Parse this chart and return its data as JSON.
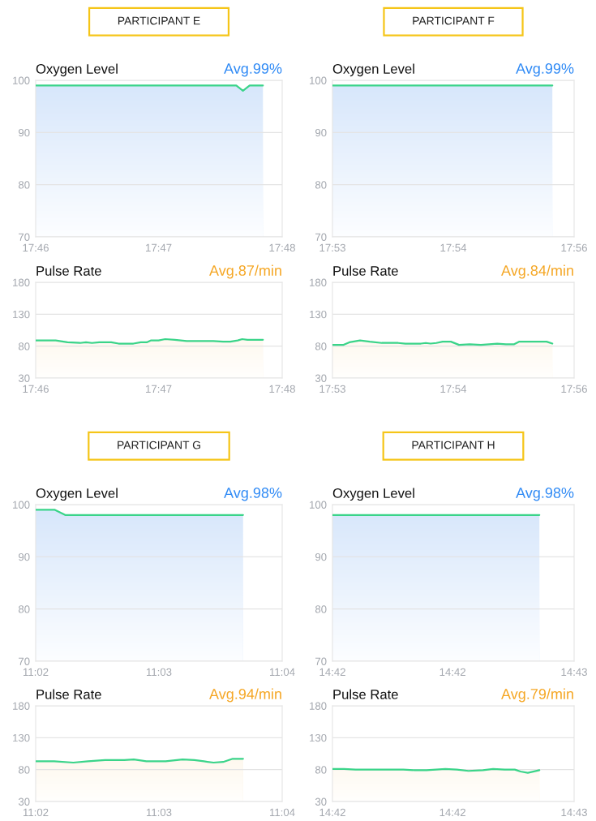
{
  "chart_data": [
    {
      "type": "area",
      "title": "Oxygen Level",
      "subtitle": "Avg.99%",
      "annotations": [
        "PARTICIPANT E"
      ],
      "x": [
        17.7667,
        17.7938,
        17.7947,
        17.7956,
        17.7974
      ],
      "values": [
        99,
        99,
        98,
        99,
        99
      ],
      "color": "#3ad489",
      "xlim": [
        17.7667,
        17.8
      ],
      "xticks": [
        {
          "value": 17.7667,
          "label": "17:46"
        },
        {
          "value": 17.7833,
          "label": "17:47"
        },
        {
          "value": 17.8,
          "label": "17:48"
        }
      ],
      "ylim": [
        70,
        100
      ],
      "yticks": [
        70,
        80,
        90,
        100
      ],
      "grid": "y"
    },
    {
      "type": "area",
      "title": "Oxygen Level",
      "subtitle": "Avg.99%",
      "annotations": [
        "PARTICIPANT F"
      ],
      "x": [
        17.8833,
        17.9288
      ],
      "values": [
        99,
        99
      ],
      "color": "#3ad489",
      "xlim": [
        17.8833,
        17.9333
      ],
      "xticks": [
        {
          "value": 17.8833,
          "label": "17:53"
        },
        {
          "value": 17.9083,
          "label": "17:54"
        },
        {
          "value": 17.9333,
          "label": "17:56"
        }
      ],
      "ylim": [
        70,
        100
      ],
      "yticks": [
        70,
        80,
        90,
        100
      ],
      "grid": "y"
    },
    {
      "type": "area",
      "title": "Pulse Rate",
      "subtitle": "Avg.87/min",
      "x": [
        17.7667,
        17.7694,
        17.771,
        17.7727,
        17.7735,
        17.7743,
        17.7753,
        17.7769,
        17.7779,
        17.7799,
        17.7809,
        17.7817,
        17.7823,
        17.7833,
        17.7842,
        17.7855,
        17.7871,
        17.7891,
        17.7907,
        17.792,
        17.793,
        17.794,
        17.7946,
        17.7953,
        17.7974
      ],
      "values": [
        89,
        89,
        86,
        85,
        86,
        85,
        86,
        86,
        84,
        84,
        86,
        86,
        89,
        89,
        91,
        90,
        88,
        88,
        88,
        87,
        87,
        89,
        91,
        90,
        90
      ],
      "color": "#3ad489",
      "xlim": [
        17.7667,
        17.8
      ],
      "xticks": [
        {
          "value": 17.7667,
          "label": "17:46"
        },
        {
          "value": 17.7833,
          "label": "17:47"
        },
        {
          "value": 17.8,
          "label": "17:48"
        }
      ],
      "ylim": [
        30,
        180
      ],
      "yticks": [
        30,
        80,
        130,
        180
      ],
      "grid": "y"
    },
    {
      "type": "area",
      "title": "Pulse Rate",
      "subtitle": "Avg.84/min",
      "x": [
        17.8833,
        17.8856,
        17.8868,
        17.889,
        17.891,
        17.8935,
        17.895,
        17.8969,
        17.8984,
        17.9009,
        17.9016,
        17.9026,
        17.9036,
        17.9048,
        17.9061,
        17.9078,
        17.9095,
        17.9117,
        17.914,
        17.9157,
        17.9174,
        17.9192,
        17.9209,
        17.9219,
        17.9241,
        17.9276,
        17.9288
      ],
      "values": [
        82,
        82,
        86,
        89,
        87,
        85,
        85,
        85,
        84,
        84,
        84,
        85,
        84,
        85,
        87,
        87,
        82,
        83,
        82,
        83,
        84,
        83,
        83,
        87,
        87,
        87,
        84
      ],
      "color": "#3ad489",
      "xlim": [
        17.8833,
        17.9333
      ],
      "xticks": [
        {
          "value": 17.8833,
          "label": "17:53"
        },
        {
          "value": 17.9083,
          "label": "17:54"
        },
        {
          "value": 17.9333,
          "label": "17:56"
        }
      ],
      "ylim": [
        30,
        180
      ],
      "yticks": [
        30,
        80,
        130,
        180
      ],
      "grid": "y"
    },
    {
      "type": "area",
      "title": "Oxygen Level",
      "subtitle": "Avg.98%",
      "annotations": [
        "PARTICIPANT G"
      ],
      "x": [
        11.0333,
        11.0359,
        11.0373,
        11.0614
      ],
      "values": [
        99,
        99,
        98,
        98
      ],
      "color": "#3ad489",
      "xlim": [
        11.0333,
        11.0667
      ],
      "xticks": [
        {
          "value": 11.0333,
          "label": "11:02"
        },
        {
          "value": 11.05,
          "label": "11:03"
        },
        {
          "value": 11.0667,
          "label": "11:04"
        }
      ],
      "ylim": [
        70,
        100
      ],
      "yticks": [
        70,
        80,
        90,
        100
      ],
      "grid": "y"
    },
    {
      "type": "area",
      "title": "Oxygen Level",
      "subtitle": "Avg.98%",
      "annotations": [
        "PARTICIPANT H"
      ],
      "x": [
        14.7,
        14.7143
      ],
      "values": [
        98,
        98
      ],
      "color": "#3ad489",
      "xlim": [
        14.7,
        14.7167
      ],
      "xticks": [
        {
          "value": 14.7,
          "label": "14:42"
        },
        {
          "value": 14.7083,
          "label": "14:42"
        },
        {
          "value": 14.7167,
          "label": "14:43"
        }
      ],
      "ylim": [
        70,
        100
      ],
      "yticks": [
        70,
        80,
        90,
        100
      ],
      "grid": "y"
    },
    {
      "type": "area",
      "title": "Pulse Rate",
      "subtitle": "Avg.94/min",
      "x": [
        11.0333,
        11.0358,
        11.0384,
        11.0404,
        11.0427,
        11.0453,
        11.0466,
        11.0483,
        11.0509,
        11.0532,
        11.0548,
        11.0561,
        11.0574,
        11.0587,
        11.06,
        11.0614
      ],
      "values": [
        93,
        93,
        91,
        93,
        95,
        95,
        96,
        93,
        93,
        96,
        95,
        93,
        91,
        92,
        97,
        97
      ],
      "color": "#3ad489",
      "xlim": [
        11.0333,
        11.0667
      ],
      "xticks": [
        {
          "value": 11.0333,
          "label": "11:02"
        },
        {
          "value": 11.05,
          "label": "11:03"
        },
        {
          "value": 11.0667,
          "label": "11:04"
        }
      ],
      "ylim": [
        30,
        180
      ],
      "yticks": [
        30,
        80,
        130,
        180
      ],
      "grid": "y"
    },
    {
      "type": "area",
      "title": "Pulse Rate",
      "subtitle": "Avg.79/min",
      "x": [
        14.7,
        14.7008,
        14.7016,
        14.7032,
        14.7049,
        14.7057,
        14.7065,
        14.7078,
        14.7086,
        14.7094,
        14.7104,
        14.7111,
        14.7119,
        14.7126,
        14.713,
        14.7135,
        14.7143
      ],
      "values": [
        81,
        81,
        80,
        80,
        80,
        79,
        79,
        81,
        80,
        78,
        79,
        81,
        80,
        80,
        77,
        75,
        79
      ],
      "color": "#3ad489",
      "xlim": [
        14.7,
        14.7167
      ],
      "xticks": [
        {
          "value": 14.7,
          "label": "14:42"
        },
        {
          "value": 14.7083,
          "label": "14:42"
        },
        {
          "value": 14.7167,
          "label": "14:43"
        }
      ],
      "ylim": [
        30,
        180
      ],
      "yticks": [
        30,
        80,
        130,
        180
      ],
      "grid": "y"
    }
  ]
}
